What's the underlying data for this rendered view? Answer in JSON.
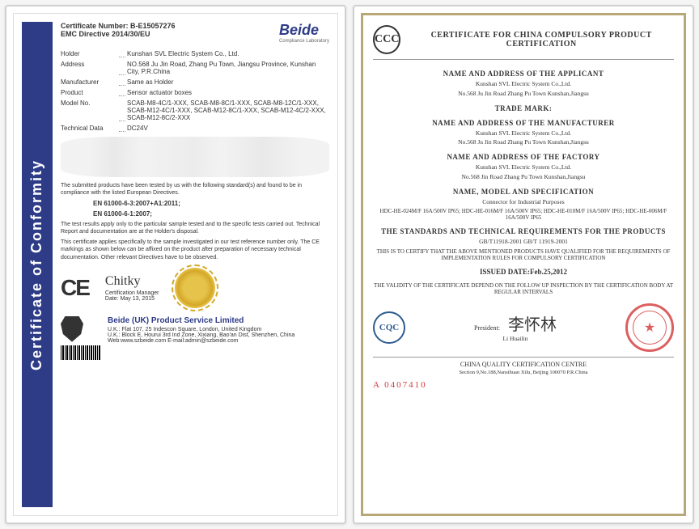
{
  "left": {
    "sidebar_title": "Certificate of Conformity",
    "cert_number_label": "Certificate Number: B-E15057276",
    "directive": "EMC Directive 2014/30/EU",
    "logo": "Beide",
    "logo_sub": "Compliance Laboratory",
    "fields": {
      "holder_label": "Holder",
      "holder": "Kunshan SVL Electric System Co., Ltd.",
      "address_label": "Address",
      "address": "NO.568 Ju Jin Road, Zhang Pu Town, Jiangsu Province, Kunshan City, P.R.China",
      "manufacturer_label": "Manufacturer",
      "manufacturer": "Same as Holder",
      "product_label": "Product",
      "product": "Sensor actuator boxes",
      "model_label": "Model No.",
      "model": "SCAB-M8-4C/1-XXX, SCAB-M8-8C/1-XXX, SCAB-M8-12C/1-XXX, SCAB-M12-4C/1-XXX, SCAB-M12-8C/1-XXX, SCAB-M12-4C/2-XXX, SCAB-M12-8C/2-XXX",
      "tech_label": "Technical Data",
      "tech": "DC24V"
    },
    "compliance1": "The submitted products have been tested by us with the following standard(s) and found to be in compliance with the listed European Directives.",
    "standard1": "EN 61000-6-3:2007+A1:2011;",
    "standard2": "EN 61000-6-1:2007;",
    "compliance2": "The test results apply only to the particular sample tested and to the specific tests carried out. Technical Report and documentation are at the Holder's disposal.",
    "compliance3": "This certificate applies specifically to the sample investigated in our test reference number only. The CE markings as shown below can be affixed on the product after preparation of necessary technical documentation. Other relevant Directives have to be observed.",
    "ce": "CE",
    "sig_name": "Certification Manager",
    "sig_date": "Date: May 13, 2015",
    "footer_title": "Beide (UK) Product Service Limited",
    "footer_addr1": "U.K.: Flat 107, 25 Indescon Square, London, United Kingdom",
    "footer_addr2": "U.K.: Block E, Hourui 3rd Ind Zone, Xixiang, Bao'an Dist, Shenzhen, China",
    "footer_web": "Web:www.szbeide.com    E-mail:admin@szbeide.com"
  },
  "right": {
    "ccc": "CCC",
    "title": "CERTIFICATE FOR CHINA COMPULSORY PRODUCT CERTIFICATION",
    "applicant_title": "NAME AND ADDRESS OF THE APPLICANT",
    "applicant": "Kunshan SVL Electric System Co.,Ltd.",
    "applicant_addr": "No.568 Ju Jin Road Zhang Pu Town Kunshan,Jiangsu",
    "trademark_title": "TRADE MARK:",
    "mfr_title": "NAME AND ADDRESS OF THE MANUFACTURER",
    "mfr": "Kunshan SVL Electric System Co.,Ltd.",
    "mfr_addr": "No.568 Ju Jin Road Zhang Pu Town Kunshan,Jiangsu",
    "factory_title": "NAME AND ADDRESS OF THE FACTORY",
    "factory": "Kunshan SVL Electric System Co.,Ltd.",
    "factory_addr": "No.568 Jin Road Zhang Pu Town Kunshan,Jiangsu",
    "spec_title": "NAME, MODEL AND SPECIFICATION",
    "spec_sub": "Connector for Industrial Purposes",
    "spec_detail": "HDC-HE-024M/F 16A/500V IP65; HDC-HE-016M/F 16A/500V IP65; HDC-HE-010M/F 16A/500V IP65; HDC-HE-006M/F 16A/500V IP65",
    "std_title": "THE STANDARDS AND TECHNICAL REQUIREMENTS FOR THE PRODUCTS",
    "std": "GB/T11918-2001 GB/T 11919-2001",
    "certify": "THIS IS TO CERTIFY THAT THE ABOVE MENTIONED PRODUCTS HAVE QUALIFIED FOR THE REQUIREMENTS OF IMPLEMENTATION RULES FOR COMPULSORY CERTIFICATION",
    "issued": "ISSUED DATE:Feb.25,2012",
    "validity": "THE VALIDITY OF THE CERTIFICATE DEPEND ON THE FOLLOW UP INSPECTION BY THE CERTIFICATION BODY AT REGULAR INTERVALS",
    "cqc": "CQC",
    "president_label": "President:",
    "president_name": "Li Huailin",
    "footer_org": "CHINA QUALITY CERTIFICATION CENTRE",
    "footer_addr": "Section 9,No.188,Nansihuan Xilu, Beijing 100070 P.R.China",
    "cert_num": "A  0407410"
  }
}
